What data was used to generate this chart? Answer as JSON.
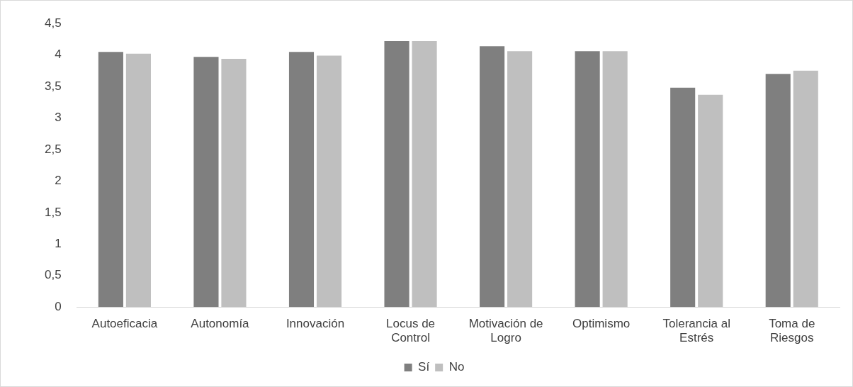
{
  "chart_data": {
    "type": "bar",
    "categories": [
      "Autoeficacia",
      "Autonomía",
      "Innovación",
      "Locus de Control",
      "Motivación de Logro",
      "Optimismo",
      "Tolerancia al Estrés",
      "Toma de Riesgos"
    ],
    "series": [
      {
        "name": "Sí",
        "color": "#7f7f7f",
        "values": [
          4.05,
          3.97,
          4.05,
          4.22,
          4.14,
          4.06,
          3.48,
          3.7
        ]
      },
      {
        "name": "No",
        "color": "#bfbfbf",
        "values": [
          4.02,
          3.94,
          3.99,
          4.22,
          4.06,
          4.06,
          3.37,
          3.75
        ]
      }
    ],
    "ylim": [
      0,
      4.5
    ],
    "yticks": [
      {
        "value": 0,
        "label": "0"
      },
      {
        "value": 0.5,
        "label": "0,5"
      },
      {
        "value": 1,
        "label": "1"
      },
      {
        "value": 1.5,
        "label": "1,5"
      },
      {
        "value": 2,
        "label": "2"
      },
      {
        "value": 2.5,
        "label": "2,5"
      },
      {
        "value": 3,
        "label": "3"
      },
      {
        "value": 3.5,
        "label": "3,5"
      },
      {
        "value": 4,
        "label": "4"
      },
      {
        "value": 4.5,
        "label": "4,5"
      }
    ],
    "grid": false,
    "legend": "bottom"
  }
}
